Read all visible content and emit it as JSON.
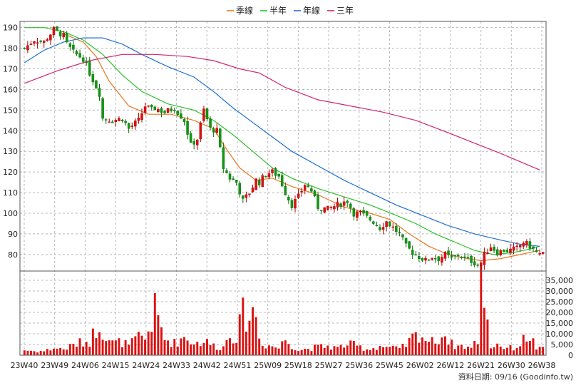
{
  "chart_data": {
    "type": "candlestick",
    "legend": [
      {
        "name": "季線",
        "color": "#e87722"
      },
      {
        "name": "半年",
        "color": "#2bbf2b"
      },
      {
        "name": "年線",
        "color": "#1e6fd0"
      },
      {
        "name": "三年",
        "color": "#d0256f"
      }
    ],
    "price_axis": {
      "ylim": [
        72,
        193
      ],
      "ticks": [
        190,
        180,
        170,
        160,
        150,
        140,
        130,
        120,
        110,
        100,
        90,
        80
      ],
      "position": "left"
    },
    "volume_axis": {
      "ylim": [
        0,
        38000
      ],
      "ticks": [
        "35,000",
        "30,000",
        "25,000",
        "20,000",
        "15,000",
        "10,000",
        "5,000",
        "0"
      ],
      "tick_values": [
        35000,
        30000,
        25000,
        20000,
        15000,
        10000,
        5000,
        0
      ],
      "position": "right"
    },
    "x_ticks": [
      "23W40",
      "23W49",
      "24W06",
      "24W15",
      "24W24",
      "24W33",
      "24W42",
      "24W51",
      "25W09",
      "25W18",
      "25W27",
      "25W36",
      "25W45",
      "26W02",
      "26W12",
      "26W21",
      "26W30",
      "26W38"
    ],
    "anchors": [
      [
        0,
        180,
        2500
      ],
      [
        3,
        184,
        2000
      ],
      [
        6,
        183,
        2000
      ],
      [
        9,
        189,
        3500
      ],
      [
        12,
        186,
        3000
      ],
      [
        13,
        182,
        3500
      ],
      [
        15,
        178,
        5000
      ],
      [
        18,
        175,
        6500
      ],
      [
        20,
        168,
        7000
      ],
      [
        23,
        158,
        16000
      ],
      [
        24,
        146,
        12000
      ],
      [
        27,
        145,
        6000
      ],
      [
        30,
        146,
        6500
      ],
      [
        32,
        141,
        4500
      ],
      [
        35,
        145,
        9000
      ],
      [
        37,
        152,
        8000
      ],
      [
        39,
        150,
        16000
      ],
      [
        40,
        151,
        22000
      ],
      [
        43,
        149,
        8000
      ],
      [
        46,
        151,
        6000
      ],
      [
        49,
        145,
        9000
      ],
      [
        51,
        133,
        7000
      ],
      [
        53,
        136,
        6000
      ],
      [
        55,
        150,
        7000
      ],
      [
        57,
        141,
        5500
      ],
      [
        59,
        140,
        4000
      ],
      [
        61,
        122,
        4000
      ],
      [
        63,
        117,
        11000
      ],
      [
        65,
        115,
        9000
      ],
      [
        67,
        106,
        20000
      ],
      [
        69,
        110,
        19000
      ],
      [
        71,
        116,
        22000
      ],
      [
        72,
        115,
        8000
      ],
      [
        74,
        119,
        5000
      ],
      [
        76,
        120,
        4500
      ],
      [
        78,
        118,
        3500
      ],
      [
        80,
        110,
        8000
      ],
      [
        82,
        104,
        5000
      ],
      [
        84,
        108,
        2500
      ],
      [
        86,
        114,
        3000
      ],
      [
        88,
        111,
        3500
      ],
      [
        90,
        103,
        4000
      ],
      [
        93,
        102,
        4500
      ],
      [
        96,
        104,
        3500
      ],
      [
        99,
        106,
        5500
      ],
      [
        101,
        100,
        5000
      ],
      [
        103,
        100,
        4000
      ],
      [
        105,
        98,
        3000
      ],
      [
        107,
        96,
        3500
      ],
      [
        109,
        93,
        4500
      ],
      [
        111,
        96,
        4000
      ],
      [
        113,
        93,
        3500
      ],
      [
        115,
        90,
        3000
      ],
      [
        117,
        84,
        5000
      ],
      [
        119,
        81,
        8500
      ],
      [
        121,
        79,
        10500
      ],
      [
        123,
        77,
        8000
      ],
      [
        125,
        79,
        6500
      ],
      [
        127,
        78,
        8500
      ],
      [
        129,
        80,
        10000
      ],
      [
        131,
        78,
        5500
      ],
      [
        133,
        80,
        4500
      ],
      [
        135,
        78,
        4500
      ],
      [
        137,
        77,
        3500
      ],
      [
        139,
        75,
        7500
      ],
      [
        140,
        76,
        38000
      ],
      [
        141,
        80,
        32000
      ],
      [
        143,
        84,
        4000
      ],
      [
        145,
        81,
        5500
      ],
      [
        147,
        82,
        4000
      ],
      [
        149,
        82,
        3500
      ],
      [
        151,
        83,
        4000
      ],
      [
        153,
        86,
        7500
      ],
      [
        155,
        84,
        9500
      ],
      [
        157,
        81,
        3500
      ],
      [
        158,
        80,
        3000
      ]
    ],
    "ma_lines": [
      {
        "name": "季線",
        "points": [
          [
            12,
            187
          ],
          [
            18,
            183
          ],
          [
            22,
            176
          ],
          [
            26,
            164
          ],
          [
            32,
            152
          ],
          [
            38,
            148
          ],
          [
            45,
            148
          ],
          [
            52,
            145
          ],
          [
            58,
            141
          ],
          [
            62,
            131
          ],
          [
            66,
            122
          ],
          [
            71,
            116
          ],
          [
            76,
            117
          ],
          [
            82,
            113
          ],
          [
            90,
            109
          ],
          [
            98,
            103
          ],
          [
            106,
            100
          ],
          [
            112,
            97
          ],
          [
            118,
            90
          ],
          [
            124,
            84
          ],
          [
            130,
            80
          ],
          [
            136,
            78
          ],
          [
            140,
            77
          ],
          [
            146,
            78
          ],
          [
            152,
            80
          ],
          [
            158,
            82
          ]
        ]
      },
      {
        "name": "半年",
        "points": [
          [
            0,
            190
          ],
          [
            6,
            190
          ],
          [
            12,
            188
          ],
          [
            18,
            184
          ],
          [
            24,
            177
          ],
          [
            30,
            167
          ],
          [
            36,
            159
          ],
          [
            44,
            153
          ],
          [
            52,
            150
          ],
          [
            58,
            145
          ],
          [
            64,
            138
          ],
          [
            70,
            130
          ],
          [
            76,
            122
          ],
          [
            82,
            117
          ],
          [
            90,
            112
          ],
          [
            98,
            108
          ],
          [
            106,
            104
          ],
          [
            114,
            99
          ],
          [
            120,
            95
          ],
          [
            126,
            90
          ],
          [
            132,
            86
          ],
          [
            138,
            82
          ],
          [
            144,
            80
          ],
          [
            150,
            81
          ],
          [
            156,
            83
          ],
          [
            158,
            84
          ]
        ]
      },
      {
        "name": "年線",
        "points": [
          [
            0,
            173
          ],
          [
            6,
            179
          ],
          [
            12,
            183
          ],
          [
            18,
            185
          ],
          [
            24,
            185
          ],
          [
            30,
            182
          ],
          [
            36,
            177
          ],
          [
            44,
            171
          ],
          [
            52,
            166
          ],
          [
            58,
            159
          ],
          [
            64,
            151
          ],
          [
            70,
            144
          ],
          [
            76,
            137
          ],
          [
            82,
            130
          ],
          [
            90,
            123
          ],
          [
            98,
            116
          ],
          [
            106,
            110
          ],
          [
            114,
            104
          ],
          [
            122,
            99
          ],
          [
            130,
            94
          ],
          [
            138,
            90
          ],
          [
            146,
            87
          ],
          [
            152,
            85
          ],
          [
            158,
            84
          ]
        ]
      },
      {
        "name": "三年",
        "points": [
          [
            0,
            163
          ],
          [
            10,
            169
          ],
          [
            20,
            174
          ],
          [
            30,
            177
          ],
          [
            40,
            177
          ],
          [
            50,
            176
          ],
          [
            58,
            174
          ],
          [
            66,
            170
          ],
          [
            72,
            168
          ],
          [
            80,
            161
          ],
          [
            90,
            155
          ],
          [
            100,
            152
          ],
          [
            110,
            149
          ],
          [
            120,
            145
          ],
          [
            130,
            139
          ],
          [
            138,
            134
          ],
          [
            146,
            129
          ],
          [
            152,
            125
          ],
          [
            158,
            121
          ]
        ]
      }
    ]
  },
  "footer": {
    "credit": "資料日期: 09/16 (Goodinfo.tw)"
  }
}
